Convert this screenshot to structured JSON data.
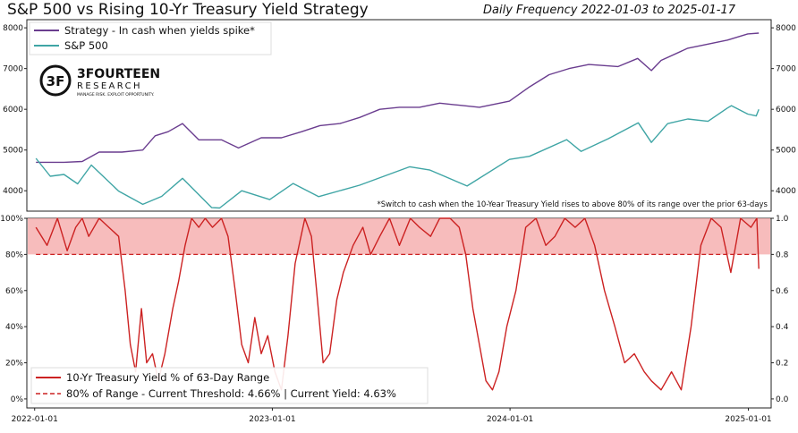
{
  "title": "S&P 500 vs Rising 10-Yr Treasury Yield Strategy",
  "subtitle": "Daily Frequency 2022-01-03 to 2025-01-17",
  "logo": {
    "brand_top": "3FOURTEEN",
    "brand_bottom": "RESEARCH",
    "tagline": "MANAGE RISK. EXPLOIT OPPORTUNITY.",
    "mark_text": "3F"
  },
  "colors": {
    "strategy": "#6a3d8f",
    "sp500": "#3fa5a5",
    "yield_pct": "#cc2222",
    "threshold": "#cc2222",
    "band": "#f4a6a6"
  },
  "chart_data": [
    {
      "type": "line",
      "panel": "top",
      "ylim": [
        3500,
        8200
      ],
      "yticks_left": [
        "4000",
        "5000",
        "6000",
        "7000",
        "8000"
      ],
      "yticks_right": [
        "4000",
        "5000",
        "6000",
        "7000",
        "8000"
      ],
      "note": "*Switch to cash when the 10-Year Treasury Yield rises to above 80% of its range over the prior 63-days",
      "series": [
        {
          "name": "Strategy - In cash when yields spike*",
          "x": [
            "2022-01-03",
            "2022-02-15",
            "2022-03-15",
            "2022-04-10",
            "2022-05-15",
            "2022-06-16",
            "2022-07-05",
            "2022-07-25",
            "2022-08-16",
            "2022-09-10",
            "2022-10-15",
            "2022-11-10",
            "2022-12-15",
            "2023-01-15",
            "2023-02-15",
            "2023-03-15",
            "2023-04-15",
            "2023-05-15",
            "2023-06-15",
            "2023-07-15",
            "2023-08-15",
            "2023-09-15",
            "2023-10-15",
            "2023-11-15",
            "2023-12-31",
            "2024-01-31",
            "2024-03-01",
            "2024-04-01",
            "2024-05-01",
            "2024-06-15",
            "2024-07-15",
            "2024-08-05",
            "2024-08-20",
            "2024-09-30",
            "2024-10-31",
            "2024-11-30",
            "2024-12-31",
            "2025-01-17"
          ],
          "values": [
            4700,
            4700,
            4720,
            4950,
            4950,
            5000,
            5350,
            5450,
            5650,
            5250,
            5250,
            5050,
            5300,
            5300,
            5450,
            5600,
            5650,
            5800,
            6000,
            6050,
            6050,
            6150,
            6100,
            6050,
            6200,
            6550,
            6850,
            7000,
            7100,
            7050,
            7250,
            6950,
            7200,
            7500,
            7600,
            7700,
            7850,
            7870
          ]
        },
        {
          "name": "S&P 500",
          "x": [
            "2022-01-03",
            "2022-01-25",
            "2022-02-15",
            "2022-03-08",
            "2022-03-29",
            "2022-05-10",
            "2022-06-16",
            "2022-07-15",
            "2022-08-16",
            "2022-09-30",
            "2022-10-12",
            "2022-11-15",
            "2022-12-28",
            "2023-02-02",
            "2023-03-13",
            "2023-05-15",
            "2023-07-31",
            "2023-08-31",
            "2023-10-27",
            "2023-12-31",
            "2024-01-31",
            "2024-03-28",
            "2024-04-19",
            "2024-05-31",
            "2024-07-16",
            "2024-08-05",
            "2024-08-30",
            "2024-09-30",
            "2024-10-31",
            "2024-11-30",
            "2024-12-06",
            "2024-12-31",
            "2025-01-13",
            "2025-01-17"
          ],
          "values": [
            4796,
            4356,
            4401,
            4170,
            4631,
            3991,
            3666,
            3863,
            4305,
            3586,
            3577,
            4000,
            3783,
            4179,
            3855,
            4136,
            4589,
            4507,
            4117,
            4770,
            4846,
            5254,
            4967,
            5278,
            5667,
            5186,
            5648,
            5762,
            5705,
            6032,
            6090,
            5882,
            5837,
            5997
          ]
        }
      ]
    },
    {
      "type": "line",
      "panel": "bottom",
      "ylim": [
        -0.05,
        1.0
      ],
      "yticks_left": [
        "0%",
        "20%",
        "40%",
        "60%",
        "80%",
        "100%"
      ],
      "yticks_right": [
        "0.0",
        "0.2",
        "0.4",
        "0.6",
        "0.8",
        "1.0"
      ],
      "xticks": [
        "2022-01-01",
        "2023-01-01",
        "2024-01-01",
        "2025-01-01"
      ],
      "series": [
        {
          "name": "10-Yr Treasury Yield % of 63-Day Range",
          "x": [
            "2022-01-03",
            "2022-01-20",
            "2022-02-05",
            "2022-02-20",
            "2022-03-05",
            "2022-03-15",
            "2022-03-25",
            "2022-04-10",
            "2022-04-25",
            "2022-05-10",
            "2022-05-20",
            "2022-05-28",
            "2022-06-05",
            "2022-06-14",
            "2022-06-22",
            "2022-07-01",
            "2022-07-10",
            "2022-07-20",
            "2022-08-01",
            "2022-08-10",
            "2022-08-20",
            "2022-08-30",
            "2022-09-10",
            "2022-09-20",
            "2022-10-01",
            "2022-10-15",
            "2022-10-25",
            "2022-11-05",
            "2022-11-15",
            "2022-11-25",
            "2022-12-05",
            "2022-12-15",
            "2022-12-25",
            "2023-01-05",
            "2023-01-15",
            "2023-01-25",
            "2023-02-05",
            "2023-02-20",
            "2023-03-02",
            "2023-03-10",
            "2023-03-20",
            "2023-03-30",
            "2023-04-10",
            "2023-04-20",
            "2023-05-05",
            "2023-05-20",
            "2023-06-01",
            "2023-06-15",
            "2023-06-30",
            "2023-07-15",
            "2023-08-01",
            "2023-08-15",
            "2023-09-01",
            "2023-09-15",
            "2023-10-01",
            "2023-10-15",
            "2023-10-25",
            "2023-11-05",
            "2023-11-15",
            "2023-11-25",
            "2023-12-05",
            "2023-12-15",
            "2023-12-27",
            "2024-01-10",
            "2024-01-25",
            "2024-02-10",
            "2024-02-25",
            "2024-03-10",
            "2024-03-25",
            "2024-04-10",
            "2024-04-25",
            "2024-05-10",
            "2024-05-25",
            "2024-06-10",
            "2024-06-25",
            "2024-07-10",
            "2024-07-25",
            "2024-08-05",
            "2024-08-20",
            "2024-09-05",
            "2024-09-20",
            "2024-10-05",
            "2024-10-20",
            "2024-11-05",
            "2024-11-20",
            "2024-12-05",
            "2024-12-20",
            "2025-01-05",
            "2025-01-14",
            "2025-01-17"
          ],
          "values": [
            0.95,
            0.85,
            1.0,
            0.82,
            0.95,
            1.0,
            0.9,
            1.0,
            0.95,
            0.9,
            0.6,
            0.3,
            0.15,
            0.5,
            0.2,
            0.25,
            0.1,
            0.25,
            0.5,
            0.65,
            0.85,
            1.0,
            0.95,
            1.0,
            0.95,
            1.0,
            0.9,
            0.6,
            0.3,
            0.2,
            0.45,
            0.25,
            0.35,
            0.15,
            0.05,
            0.35,
            0.75,
            1.0,
            0.9,
            0.6,
            0.2,
            0.25,
            0.55,
            0.7,
            0.85,
            0.95,
            0.8,
            0.9,
            1.0,
            0.85,
            1.0,
            0.95,
            0.9,
            1.0,
            1.0,
            0.95,
            0.8,
            0.5,
            0.3,
            0.1,
            0.05,
            0.15,
            0.4,
            0.6,
            0.95,
            1.0,
            0.85,
            0.9,
            1.0,
            0.95,
            1.0,
            0.85,
            0.6,
            0.4,
            0.2,
            0.25,
            0.15,
            0.1,
            0.05,
            0.15,
            0.05,
            0.4,
            0.85,
            1.0,
            0.95,
            0.7,
            1.0,
            0.95,
            1.0,
            0.72
          ]
        },
        {
          "name": "80% of Range - Current Threshold: 4.66% | Current Yield: 4.63%",
          "x": [
            "2022-01-03",
            "2025-01-17"
          ],
          "values": [
            0.8,
            0.8
          ]
        }
      ]
    }
  ]
}
